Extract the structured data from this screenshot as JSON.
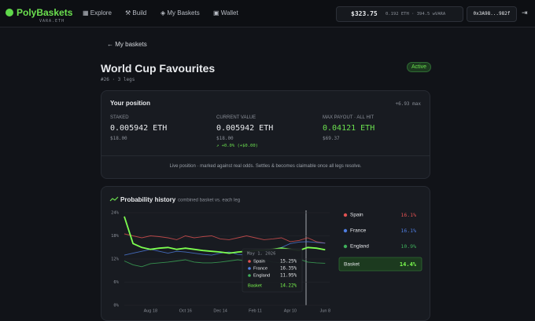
{
  "nav": {
    "brand": "PolyBaskets",
    "brand_sub": "VARA.ETH",
    "links": [
      "Explore",
      "Build",
      "My Baskets",
      "Wallet"
    ],
    "balance": "$323.75",
    "balance_detail": "0.192 ETH · 394.5 wVARA",
    "address": "0x3A98...982f"
  },
  "header": {
    "back": "My baskets",
    "title": "World Cup Favourites",
    "meta": "#26 · 3 legs",
    "status": "Active"
  },
  "position": {
    "title": "Your position",
    "max": "+6.93 max",
    "stats": [
      {
        "label": "STAKED",
        "value": "0.005942 ETH",
        "usd": "$18.00"
      },
      {
        "label": "CURRENT VALUE",
        "value": "0.005942 ETH",
        "usd": "$18.00",
        "change": "↗ +0.0% (+$0.00)"
      },
      {
        "label": "MAX PAYOUT · ALL HIT",
        "value": "0.04121 ETH",
        "usd": "$69.37"
      }
    ],
    "note": "Live position · marked against real odds. Settles & becomes claimable once all legs resolve."
  },
  "chart_data": {
    "type": "line",
    "title": "Probability history",
    "subtitle": "combined basket vs. each leg",
    "categories": [
      null,
      null,
      null,
      "Aug 18",
      null,
      null,
      null,
      "Oct 16",
      null,
      null,
      null,
      "Dec 14",
      null,
      null,
      null,
      "Feb 11",
      null,
      null,
      null,
      "Apr 10",
      null,
      null,
      null,
      "Jun 8"
    ],
    "ylim": [
      0,
      24
    ],
    "yticks": [
      {
        "value": 0,
        "label": "0%"
      },
      {
        "value": 6,
        "label": "6%"
      },
      {
        "value": 12,
        "label": "12%"
      },
      {
        "value": 18,
        "label": "18%"
      },
      {
        "value": 24,
        "label": "24%"
      }
    ],
    "series": [
      {
        "name": "Spain",
        "color": "#e05252",
        "latest": "16.1%",
        "values": [
          18.5,
          18,
          17.5,
          18,
          17.8,
          17.5,
          17,
          18,
          17.5,
          17.8,
          18,
          17.2,
          17,
          17.5,
          18,
          17.5,
          17,
          17.2,
          17.5,
          16.5,
          16.8,
          17.5,
          16.5,
          16.1
        ]
      },
      {
        "name": "France",
        "color": "#4f7de0",
        "latest": "16.1%",
        "values": [
          13,
          13.5,
          14,
          14.5,
          14,
          13.5,
          14,
          13.8,
          13.5,
          13.2,
          13,
          13.5,
          13.8,
          13.2,
          13,
          13.5,
          13.8,
          14.5,
          15,
          16,
          16.4,
          16.5,
          16.3,
          16.1
        ]
      },
      {
        "name": "England",
        "color": "#3fae5a",
        "latest": "10.9%",
        "values": [
          11.5,
          10.5,
          10,
          10.8,
          11,
          11.2,
          11.5,
          11.8,
          11.2,
          11,
          11,
          11.2,
          11.5,
          11.8,
          11.5,
          11.5,
          11.8,
          11.2,
          11,
          11.5,
          12,
          11.2,
          11,
          10.9
        ]
      },
      {
        "name": "Basket",
        "color": "#7dff4f",
        "latest": "14.4%",
        "values": [
          23,
          16,
          15,
          14.5,
          14.8,
          15,
          14.5,
          14.8,
          14.5,
          14.2,
          14,
          13.8,
          13.5,
          13.8,
          14,
          14.2,
          14.3,
          14.5,
          14.8,
          14.5,
          14.2,
          15,
          14.8,
          14.4
        ]
      }
    ],
    "tooltip": {
      "date": "May 1, 2026",
      "values": [
        "15.25%",
        "16.35%",
        "11.95%",
        "14.22%"
      ]
    }
  }
}
